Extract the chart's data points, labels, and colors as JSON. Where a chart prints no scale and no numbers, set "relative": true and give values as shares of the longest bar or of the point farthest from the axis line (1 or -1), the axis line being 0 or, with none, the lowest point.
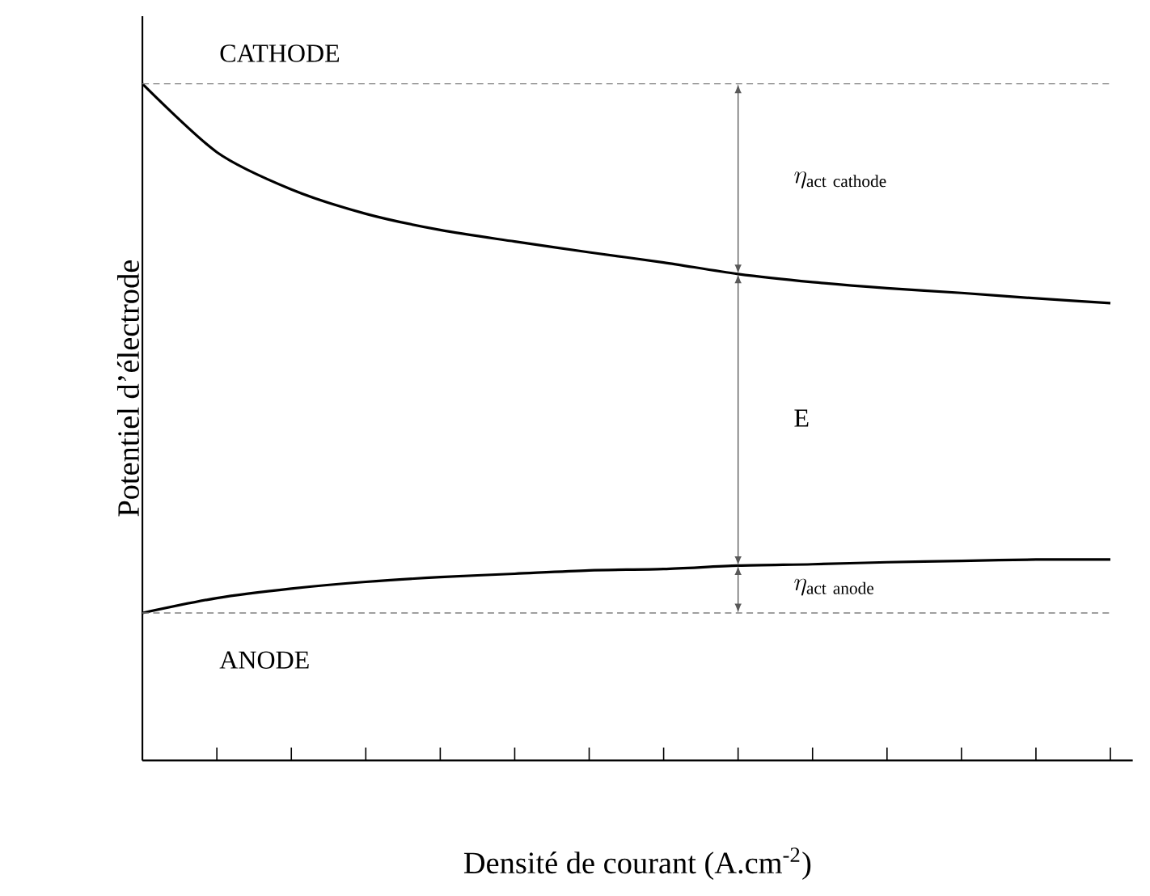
{
  "chart_data": {
    "type": "line",
    "relative": true,
    "xlabel": "Densité de courant (A.cm$^{-2}$)",
    "ylabel": "Potentiel d’électrode",
    "categories": [
      null,
      null,
      null,
      null,
      null,
      null,
      null,
      null,
      null,
      null,
      null,
      null,
      null,
      null
    ],
    "series": [
      {
        "color": "#000000",
        "values": [
          1.0,
          0.899,
          0.844,
          0.808,
          0.784,
          0.767,
          0.751,
          0.736,
          0.719,
          0.707,
          0.698,
          0.691,
          0.683,
          0.676
        ]
      },
      {
        "color": "#000000",
        "values": [
          0.218,
          0.24,
          0.254,
          0.264,
          0.271,
          0.276,
          0.281,
          0.283,
          0.288,
          0.29,
          0.293,
          0.295,
          0.297,
          0.297
        ]
      }
    ],
    "ref_lines": [
      {
        "axis": "y",
        "value": 1.0,
        "color": "#808080",
        "line_style": "dashed"
      },
      {
        "axis": "y",
        "value": 0.218,
        "color": "#808080",
        "line_style": "dashed"
      }
    ],
    "annotations": [
      "CATHODE",
      "ANODE",
      "\\eta_{\\mathrm{act\\ cathode}}",
      "E",
      "\\eta_{\\mathrm{act\\ anode}}"
    ]
  }
}
